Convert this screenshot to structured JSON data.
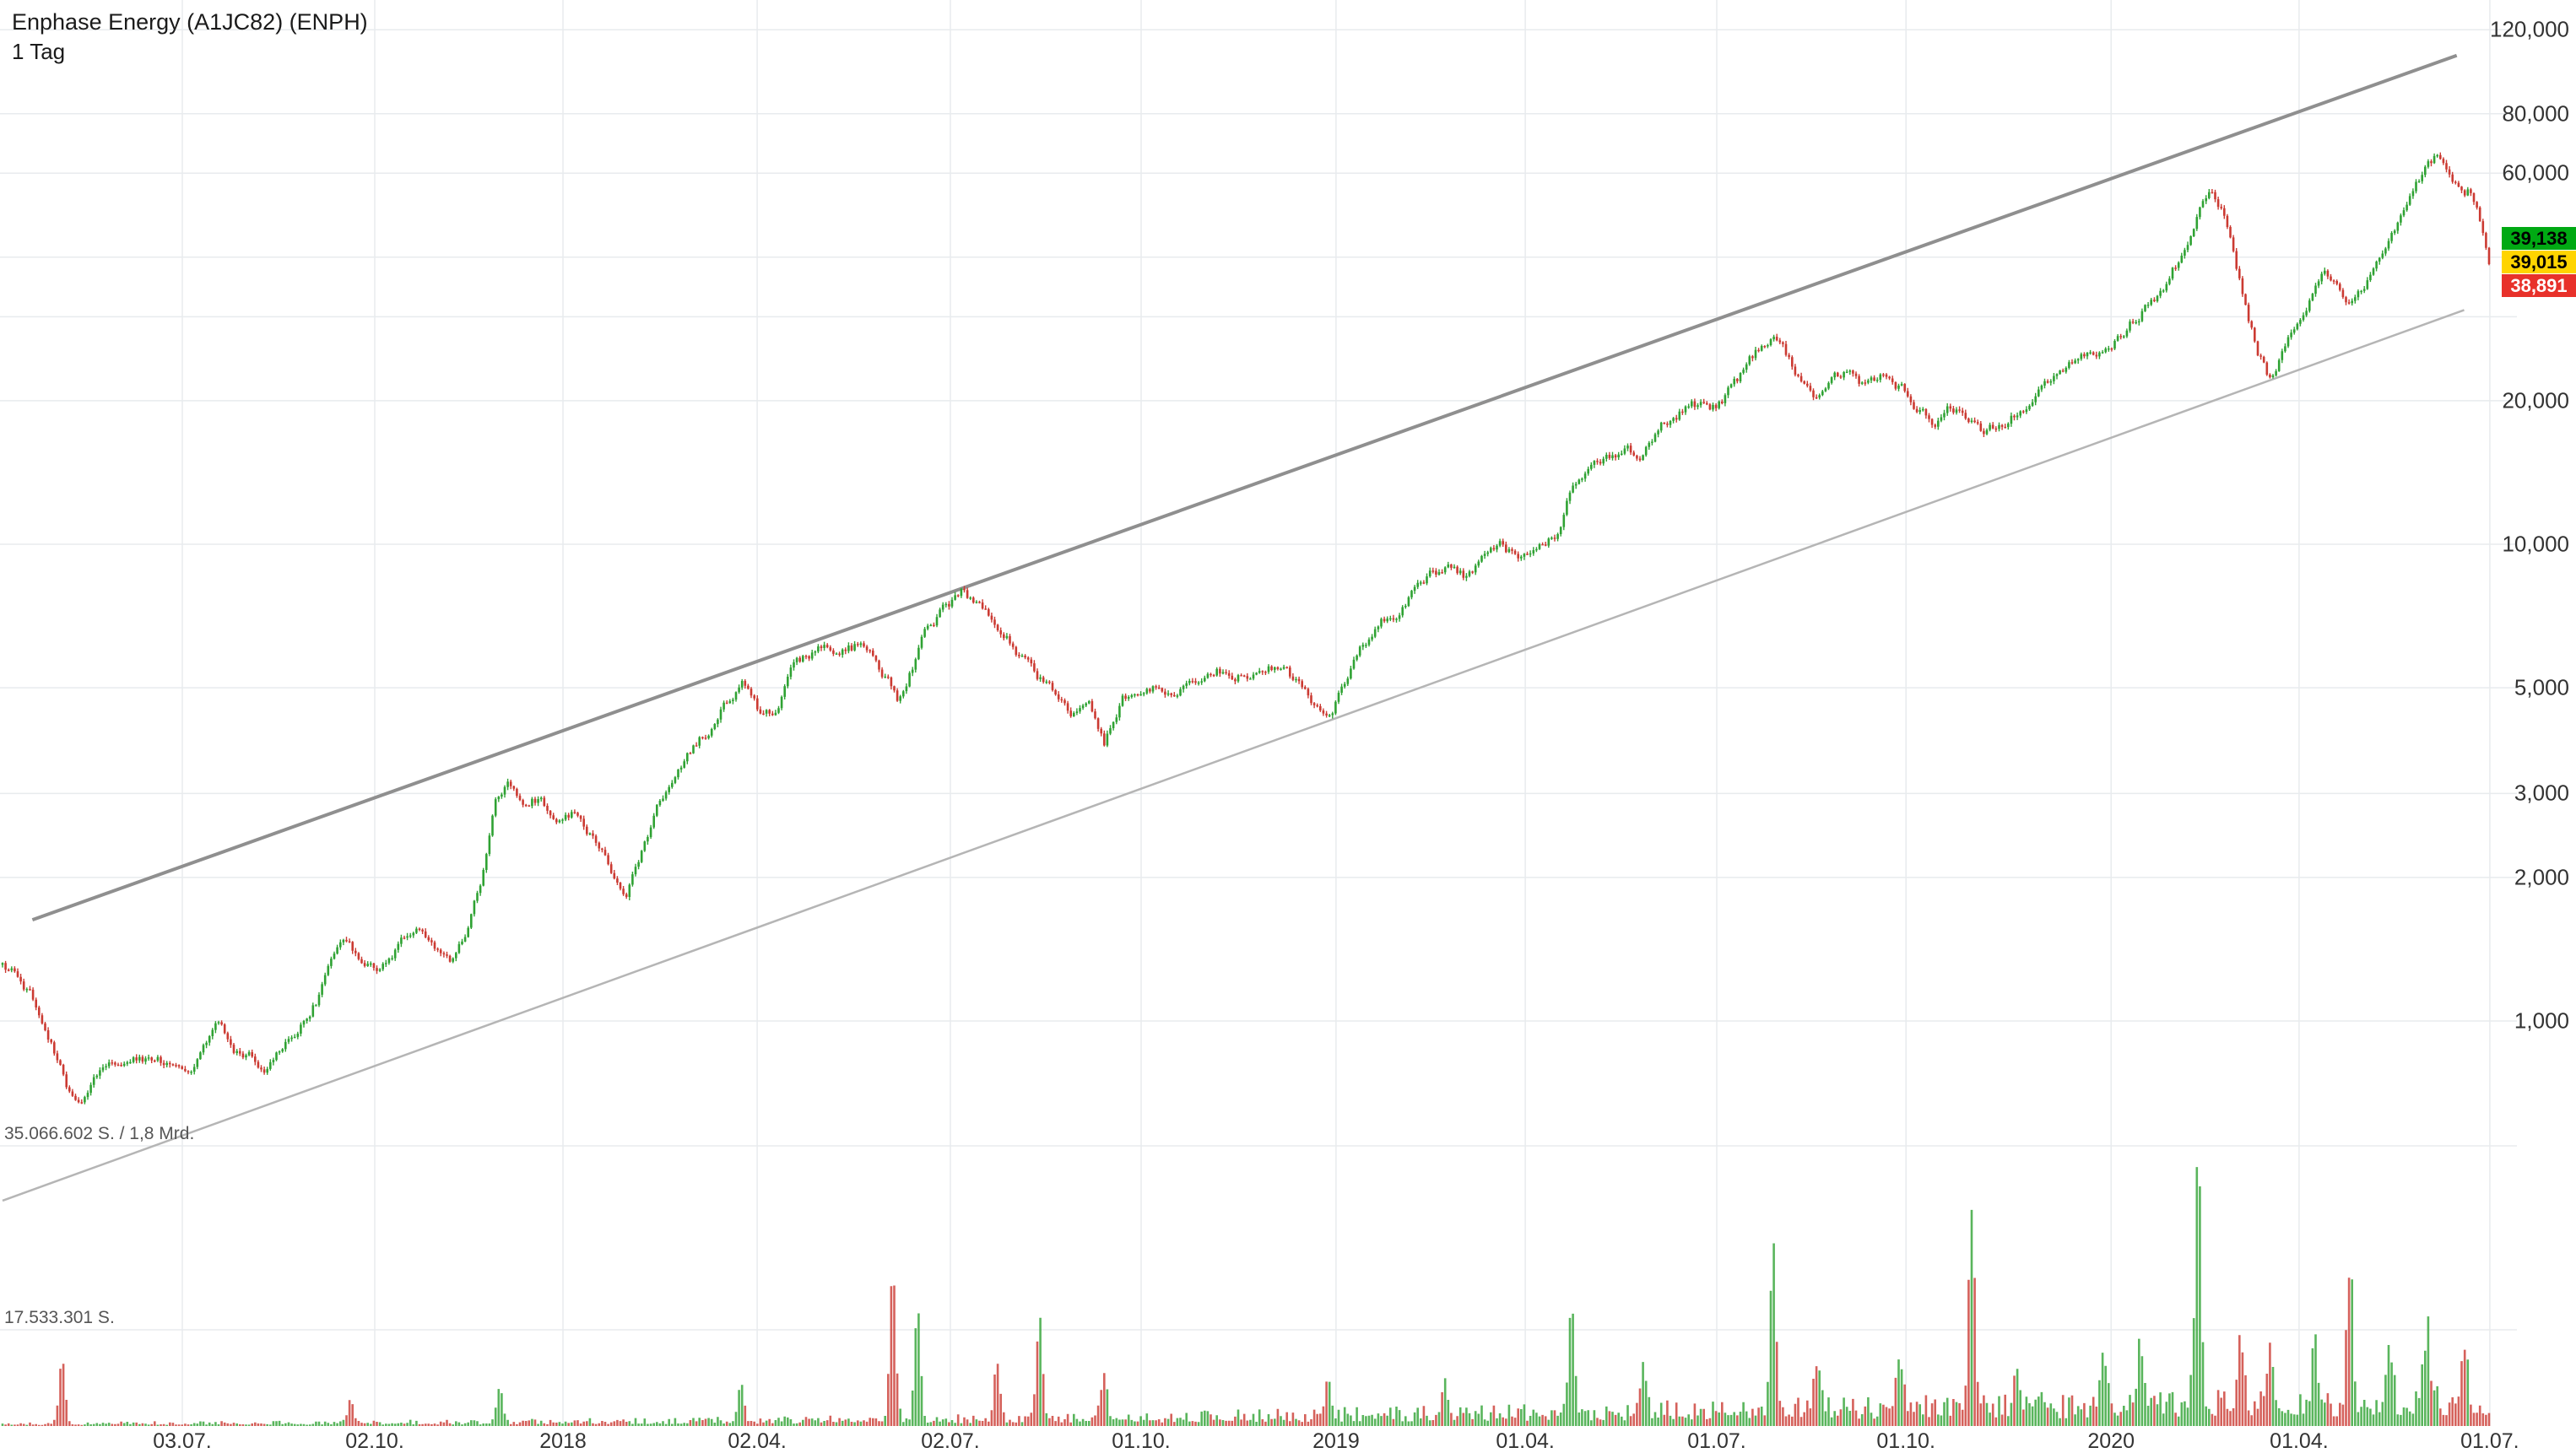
{
  "header": {
    "title": "Enphase Energy (A1JC82) (ENPH)",
    "timeframe": "1 Tag"
  },
  "badges": {
    "ask": "39,138",
    "last": "39,015",
    "bid": "38,891",
    "ask_color": "#00a913",
    "last_color": "#ffd400",
    "bid_color": "#e8312a"
  },
  "volume_axis": {
    "top_label": "35.066.602 S. / 1,8 Mrd.",
    "mid_label": "17.533.301 S."
  },
  "chart_data": {
    "type": "candlestick",
    "title": "Enphase Energy (A1JC82) (ENPH)",
    "timeframe": "1 Tag",
    "scale": "log",
    "legend_position": "none",
    "grid": true,
    "y_axis": {
      "side": "right",
      "unit": "EUR",
      "range": [
        0.6,
        130
      ],
      "ticks": [
        {
          "label": "120,000",
          "value": 120
        },
        {
          "label": "80,000",
          "value": 80
        },
        {
          "label": "60,000",
          "value": 60
        },
        {
          "label": "20,000",
          "value": 20
        },
        {
          "label": "10,000",
          "value": 10
        },
        {
          "label": "5,000",
          "value": 5
        },
        {
          "label": "3,000",
          "value": 3
        },
        {
          "label": "2,000",
          "value": 2
        },
        {
          "label": "1,000",
          "value": 1
        }
      ],
      "unlabeled_grid_values": [
        40,
        30
      ]
    },
    "x_axis": {
      "ticks": [
        {
          "label": "03.07.",
          "pos": 0.0723
        },
        {
          "label": "02.10.",
          "pos": 0.1497
        },
        {
          "label": "2018",
          "pos": 0.2254
        },
        {
          "label": "02.04.",
          "pos": 0.3035
        },
        {
          "label": "02.07.",
          "pos": 0.3812
        },
        {
          "label": "01.10.",
          "pos": 0.4579
        },
        {
          "label": "2019",
          "pos": 0.5363
        },
        {
          "label": "01.04.",
          "pos": 0.6124
        },
        {
          "label": "01.07.",
          "pos": 0.6894
        },
        {
          "label": "01.10.",
          "pos": 0.7655
        },
        {
          "label": "2020",
          "pos": 0.848
        },
        {
          "label": "01.04.",
          "pos": 0.9236
        },
        {
          "label": "01.07.",
          "pos": 1.0003
        }
      ]
    },
    "last_prices": {
      "ask": 39.138,
      "last": 39.015,
      "bid": 38.891
    },
    "volume_gridline_labels": [
      "35.066.602 S. / 1,8 Mrd.",
      "17.533.301 S."
    ],
    "price_path_anchors": [
      [
        0.0,
        1.35
      ],
      [
        0.01,
        1.18
      ],
      [
        0.02,
        0.92
      ],
      [
        0.026,
        0.72
      ],
      [
        0.032,
        0.65
      ],
      [
        0.04,
        0.78
      ],
      [
        0.052,
        0.83
      ],
      [
        0.065,
        0.8
      ],
      [
        0.078,
        0.85
      ],
      [
        0.086,
        0.95
      ],
      [
        0.095,
        0.85
      ],
      [
        0.107,
        0.8
      ],
      [
        0.116,
        0.9
      ],
      [
        0.126,
        1.1
      ],
      [
        0.133,
        1.32
      ],
      [
        0.139,
        1.48
      ],
      [
        0.146,
        1.3
      ],
      [
        0.152,
        1.26
      ],
      [
        0.159,
        1.44
      ],
      [
        0.166,
        1.56
      ],
      [
        0.173,
        1.39
      ],
      [
        0.18,
        1.31
      ],
      [
        0.187,
        1.5
      ],
      [
        0.193,
        1.95
      ],
      [
        0.198,
        2.75
      ],
      [
        0.203,
        3.2
      ],
      [
        0.209,
        2.75
      ],
      [
        0.216,
        2.92
      ],
      [
        0.224,
        2.62
      ],
      [
        0.23,
        2.78
      ],
      [
        0.238,
        2.45
      ],
      [
        0.246,
        2.05
      ],
      [
        0.251,
        1.93
      ],
      [
        0.258,
        2.35
      ],
      [
        0.265,
        2.85
      ],
      [
        0.271,
        3.2
      ],
      [
        0.278,
        3.65
      ],
      [
        0.286,
        4.25
      ],
      [
        0.292,
        4.75
      ],
      [
        0.297,
        5.3
      ],
      [
        0.304,
        4.35
      ],
      [
        0.311,
        4.55
      ],
      [
        0.319,
        5.45
      ],
      [
        0.327,
        5.75
      ],
      [
        0.336,
        6.05
      ],
      [
        0.344,
        6.15
      ],
      [
        0.351,
        5.85
      ],
      [
        0.357,
        5.05
      ],
      [
        0.36,
        4.6
      ],
      [
        0.366,
        5.6
      ],
      [
        0.372,
        6.6
      ],
      [
        0.379,
        7.4
      ],
      [
        0.386,
        7.9
      ],
      [
        0.392,
        7.55
      ],
      [
        0.399,
        7.0
      ],
      [
        0.407,
        6.2
      ],
      [
        0.415,
        5.45
      ],
      [
        0.423,
        4.95
      ],
      [
        0.43,
        4.55
      ],
      [
        0.437,
        4.9
      ],
      [
        0.443,
        3.95
      ],
      [
        0.451,
        4.85
      ],
      [
        0.458,
        4.55
      ],
      [
        0.465,
        5.1
      ],
      [
        0.472,
        4.8
      ],
      [
        0.48,
        5.3
      ],
      [
        0.488,
        5.55
      ],
      [
        0.494,
        5.2
      ],
      [
        0.5,
        5.5
      ],
      [
        0.507,
        5.3
      ],
      [
        0.514,
        5.6
      ],
      [
        0.521,
        5.0
      ],
      [
        0.528,
        4.4
      ],
      [
        0.533,
        4.3
      ],
      [
        0.541,
        5.2
      ],
      [
        0.549,
        6.2
      ],
      [
        0.557,
        7.0
      ],
      [
        0.564,
        7.6
      ],
      [
        0.572,
        8.3
      ],
      [
        0.58,
        8.8
      ],
      [
        0.588,
        8.45
      ],
      [
        0.596,
        9.2
      ],
      [
        0.603,
        9.6
      ],
      [
        0.61,
        9.3
      ],
      [
        0.618,
        10.2
      ],
      [
        0.626,
        10.8
      ],
      [
        0.631,
        13.0
      ],
      [
        0.638,
        14.5
      ],
      [
        0.645,
        15.6
      ],
      [
        0.652,
        16.0
      ],
      [
        0.658,
        15.4
      ],
      [
        0.665,
        17.0
      ],
      [
        0.672,
        18.6
      ],
      [
        0.679,
        19.6
      ],
      [
        0.687,
        18.8
      ],
      [
        0.694,
        20.5
      ],
      [
        0.701,
        23.0
      ],
      [
        0.707,
        25.5
      ],
      [
        0.712,
        26.5
      ],
      [
        0.718,
        24.0
      ],
      [
        0.724,
        21.0
      ],
      [
        0.73,
        19.6
      ],
      [
        0.737,
        21.5
      ],
      [
        0.744,
        22.6
      ],
      [
        0.75,
        21.2
      ],
      [
        0.757,
        22.2
      ],
      [
        0.763,
        21.2
      ],
      [
        0.77,
        19.2
      ],
      [
        0.777,
        18.1
      ],
      [
        0.783,
        19.6
      ],
      [
        0.79,
        18.6
      ],
      [
        0.797,
        17.3
      ],
      [
        0.804,
        18.1
      ],
      [
        0.811,
        19.6
      ],
      [
        0.818,
        21.2
      ],
      [
        0.825,
        22.6
      ],
      [
        0.832,
        23.6
      ],
      [
        0.838,
        24.6
      ],
      [
        0.845,
        26.2
      ],
      [
        0.852,
        28.2
      ],
      [
        0.858,
        30.6
      ],
      [
        0.865,
        33.2
      ],
      [
        0.871,
        36.5
      ],
      [
        0.877,
        41.0
      ],
      [
        0.883,
        49.0
      ],
      [
        0.888,
        56.5
      ],
      [
        0.893,
        50.0
      ],
      [
        0.897,
        40.0
      ],
      [
        0.902,
        31.0
      ],
      [
        0.907,
        25.0
      ],
      [
        0.912,
        22.0
      ],
      [
        0.918,
        26.5
      ],
      [
        0.924,
        30.5
      ],
      [
        0.929,
        34.0
      ],
      [
        0.934,
        37.5
      ],
      [
        0.939,
        35.0
      ],
      [
        0.944,
        32.5
      ],
      [
        0.95,
        36.0
      ],
      [
        0.955,
        40.5
      ],
      [
        0.96,
        44.5
      ],
      [
        0.965,
        49.0
      ],
      [
        0.97,
        56.0
      ],
      [
        0.975,
        61.0
      ],
      [
        0.979,
        64.0
      ],
      [
        0.983,
        59.0
      ],
      [
        0.987,
        55.0
      ],
      [
        0.99,
        51.0
      ],
      [
        0.993,
        53.0
      ],
      [
        0.996,
        48.0
      ],
      [
        1.0,
        39.1
      ]
    ],
    "volume_spikes_millions": [
      [
        0.024,
        8
      ],
      [
        0.14,
        3
      ],
      [
        0.2,
        4
      ],
      [
        0.297,
        5
      ],
      [
        0.358,
        18
      ],
      [
        0.368,
        14
      ],
      [
        0.4,
        7
      ],
      [
        0.417,
        12
      ],
      [
        0.443,
        6
      ],
      [
        0.533,
        5
      ],
      [
        0.58,
        5
      ],
      [
        0.631,
        14
      ],
      [
        0.66,
        6
      ],
      [
        0.712,
        20
      ],
      [
        0.73,
        7
      ],
      [
        0.763,
        6
      ],
      [
        0.792,
        25
      ],
      [
        0.81,
        6
      ],
      [
        0.845,
        7
      ],
      [
        0.86,
        8
      ],
      [
        0.883,
        33
      ],
      [
        0.9,
        10
      ],
      [
        0.912,
        9
      ],
      [
        0.93,
        8
      ],
      [
        0.944,
        17
      ],
      [
        0.96,
        8
      ],
      [
        0.975,
        9
      ],
      [
        0.99,
        8
      ]
    ],
    "trendlines": [
      {
        "name": "upper-channel-line",
        "x1": 0.012,
        "price1": 1.63,
        "x2": 0.987,
        "price2": 106,
        "color": "#8f8f8f",
        "width": 4
      },
      {
        "name": "lower-channel-line",
        "x1": 0.0,
        "price1": 0.42,
        "x2": 0.99,
        "price2": 31,
        "color": "#b5b5b5",
        "width": 2.5
      }
    ],
    "colors": {
      "up": "#2fa233",
      "down": "#cb3a32",
      "grid": "#e8ebee",
      "background": "#ffffff"
    }
  }
}
